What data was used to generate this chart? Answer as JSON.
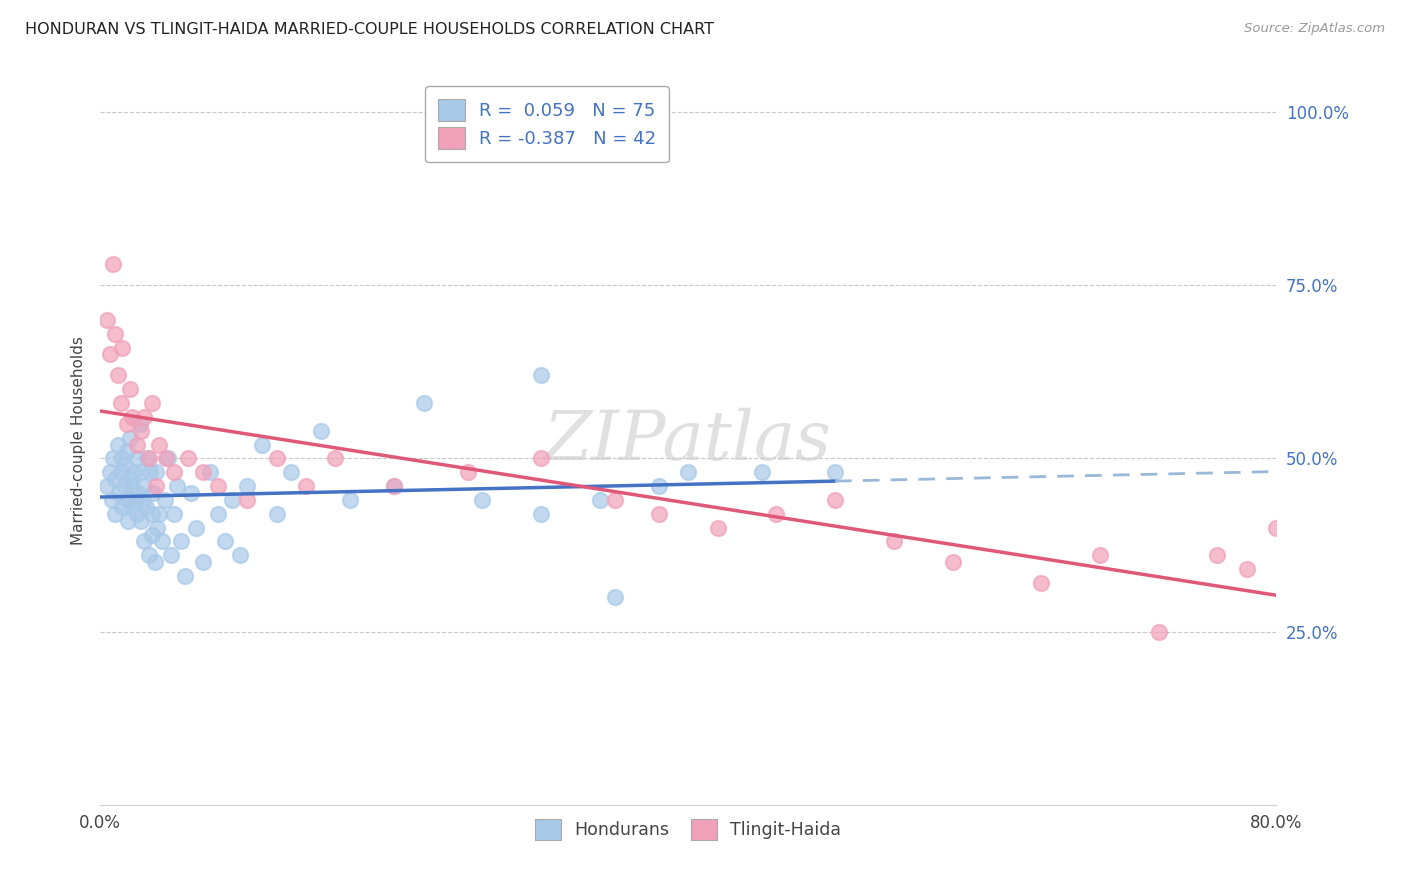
{
  "title": "HONDURAN VS TLINGIT-HAIDA MARRIED-COUPLE HOUSEHOLDS CORRELATION CHART",
  "source": "Source: ZipAtlas.com",
  "ylabel": "Married-couple Households",
  "yticks": [
    "100.0%",
    "75.0%",
    "50.0%",
    "25.0%"
  ],
  "ytick_vals": [
    1.0,
    0.75,
    0.5,
    0.25
  ],
  "legend_label1": "Hondurans",
  "legend_label2": "Tlingit-Haida",
  "R1": 0.059,
  "N1": 75,
  "R2": -0.387,
  "N2": 42,
  "color1": "#a8c8e8",
  "color2": "#f0a0b8",
  "line1_color": "#4472c4",
  "line2_color": "#e05878",
  "line1_dashed_color": "#9ab8d8",
  "background_color": "#ffffff",
  "grid_color": "#c8c8c8",
  "hondurans_x": [
    0.005,
    0.007,
    0.008,
    0.009,
    0.01,
    0.01,
    0.012,
    0.013,
    0.014,
    0.015,
    0.015,
    0.016,
    0.017,
    0.018,
    0.018,
    0.019,
    0.02,
    0.02,
    0.021,
    0.022,
    0.023,
    0.024,
    0.025,
    0.025,
    0.026,
    0.027,
    0.028,
    0.028,
    0.029,
    0.03,
    0.03,
    0.031,
    0.032,
    0.033,
    0.034,
    0.035,
    0.035,
    0.036,
    0.037,
    0.038,
    0.039,
    0.04,
    0.042,
    0.044,
    0.046,
    0.048,
    0.05,
    0.052,
    0.055,
    0.058,
    0.062,
    0.065,
    0.07,
    0.075,
    0.08,
    0.085,
    0.09,
    0.095,
    0.1,
    0.11,
    0.12,
    0.13,
    0.15,
    0.17,
    0.2,
    0.22,
    0.26,
    0.3,
    0.34,
    0.38,
    0.3,
    0.35,
    0.4,
    0.45,
    0.5
  ],
  "hondurans_y": [
    0.46,
    0.48,
    0.44,
    0.5,
    0.42,
    0.47,
    0.52,
    0.45,
    0.48,
    0.5,
    0.43,
    0.46,
    0.49,
    0.44,
    0.51,
    0.41,
    0.47,
    0.53,
    0.43,
    0.46,
    0.48,
    0.44,
    0.5,
    0.42,
    0.45,
    0.55,
    0.41,
    0.48,
    0.44,
    0.46,
    0.38,
    0.43,
    0.5,
    0.36,
    0.48,
    0.42,
    0.39,
    0.45,
    0.35,
    0.48,
    0.4,
    0.42,
    0.38,
    0.44,
    0.5,
    0.36,
    0.42,
    0.46,
    0.38,
    0.33,
    0.45,
    0.4,
    0.35,
    0.48,
    0.42,
    0.38,
    0.44,
    0.36,
    0.46,
    0.52,
    0.42,
    0.48,
    0.54,
    0.44,
    0.46,
    0.58,
    0.44,
    0.62,
    0.44,
    0.46,
    0.42,
    0.3,
    0.48,
    0.48,
    0.48
  ],
  "tlingit_x": [
    0.005,
    0.007,
    0.009,
    0.01,
    0.012,
    0.014,
    0.015,
    0.018,
    0.02,
    0.022,
    0.025,
    0.028,
    0.03,
    0.033,
    0.035,
    0.038,
    0.04,
    0.045,
    0.05,
    0.06,
    0.07,
    0.08,
    0.1,
    0.12,
    0.14,
    0.16,
    0.2,
    0.25,
    0.3,
    0.35,
    0.38,
    0.42,
    0.46,
    0.5,
    0.54,
    0.58,
    0.64,
    0.68,
    0.72,
    0.76,
    0.78,
    0.8
  ],
  "tlingit_y": [
    0.7,
    0.65,
    0.78,
    0.68,
    0.62,
    0.58,
    0.66,
    0.55,
    0.6,
    0.56,
    0.52,
    0.54,
    0.56,
    0.5,
    0.58,
    0.46,
    0.52,
    0.5,
    0.48,
    0.5,
    0.48,
    0.46,
    0.44,
    0.5,
    0.46,
    0.5,
    0.46,
    0.48,
    0.5,
    0.44,
    0.42,
    0.4,
    0.42,
    0.44,
    0.38,
    0.35,
    0.32,
    0.36,
    0.25,
    0.36,
    0.34,
    0.4
  ]
}
